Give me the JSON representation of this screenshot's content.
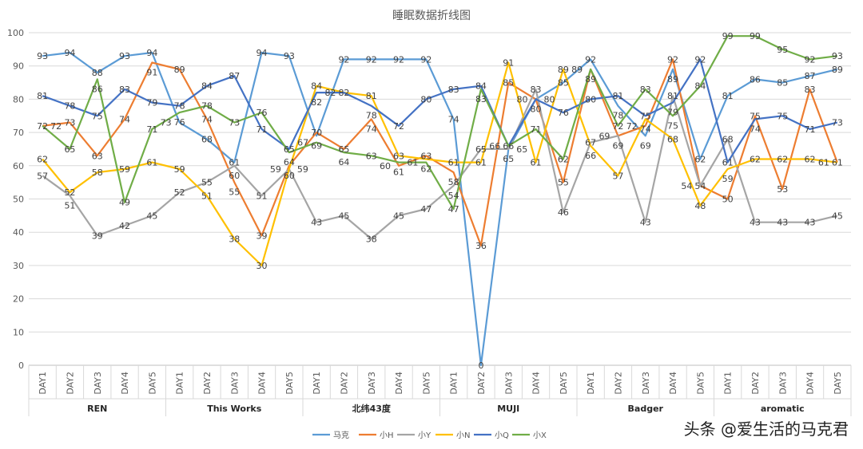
{
  "chart_data": {
    "type": "line",
    "title": "睡眠数据折线图",
    "ylim": [
      0,
      100
    ],
    "yticks": [
      0,
      10,
      20,
      30,
      40,
      50,
      60,
      70,
      80,
      90,
      100
    ],
    "grid": true,
    "legend_position": "bottom",
    "groups": [
      "REN",
      "This Works",
      "北纬43度",
      "MUJI",
      "Badger",
      "aromatic"
    ],
    "days": [
      "DAY1",
      "DAY2",
      "DAY3",
      "DAY4",
      "DAY5"
    ],
    "series": [
      {
        "name": "马克",
        "color": "#5b9bd5",
        "values": [
          93,
          94,
          88,
          93,
          94,
          73,
          68,
          61,
          94,
          93,
          69,
          92,
          92,
          92,
          92,
          74,
          0,
          65,
          80,
          85,
          92,
          78,
          69,
          89,
          62,
          81,
          86,
          85,
          87,
          89
        ]
      },
      {
        "name": "小H",
        "color": "#ed7d31",
        "values": [
          72,
          73,
          63,
          74,
          91,
          89,
          74,
          55,
          39,
          60,
          70,
          65,
          74,
          60,
          63,
          58,
          36,
          85,
          80,
          55,
          89,
          69,
          72,
          92,
          54,
          50,
          75,
          53,
          83,
          61
        ]
      },
      {
        "name": "小Y",
        "color": "#a5a5a5",
        "values": [
          57,
          51,
          39,
          42,
          45,
          52,
          55,
          60,
          51,
          59,
          43,
          45,
          38,
          45,
          47,
          54,
          65,
          65,
          83,
          46,
          67,
          69,
          43,
          81,
          54,
          68,
          43,
          43,
          43,
          45
        ]
      },
      {
        "name": "小N",
        "color": "#ffc000",
        "values": [
          62,
          52,
          58,
          59,
          61,
          59,
          51,
          38,
          30,
          59,
          84,
          82,
          81,
          63,
          62,
          61,
          61,
          91,
          61,
          89,
          66,
          57,
          74,
          68,
          48,
          59,
          62,
          62,
          62,
          61
        ]
      },
      {
        "name": "小Q",
        "color": "#4472c4",
        "values": [
          81,
          78,
          75,
          83,
          79,
          78,
          84,
          87,
          71,
          65,
          82,
          82,
          78,
          72,
          80,
          83,
          84,
          66,
          80,
          76,
          80,
          81,
          75,
          79,
          92,
          61,
          74,
          75,
          71,
          73
        ]
      },
      {
        "name": "小X",
        "color": "#70ad47",
        "values": [
          72,
          65,
          86,
          49,
          71,
          76,
          78,
          73,
          76,
          64,
          67,
          64,
          63,
          61,
          61,
          47,
          83,
          66,
          71,
          62,
          89,
          72,
          83,
          75,
          84,
          99,
          99,
          95,
          92,
          93
        ]
      }
    ]
  },
  "watermark": "头条 @爱生活的马克君"
}
